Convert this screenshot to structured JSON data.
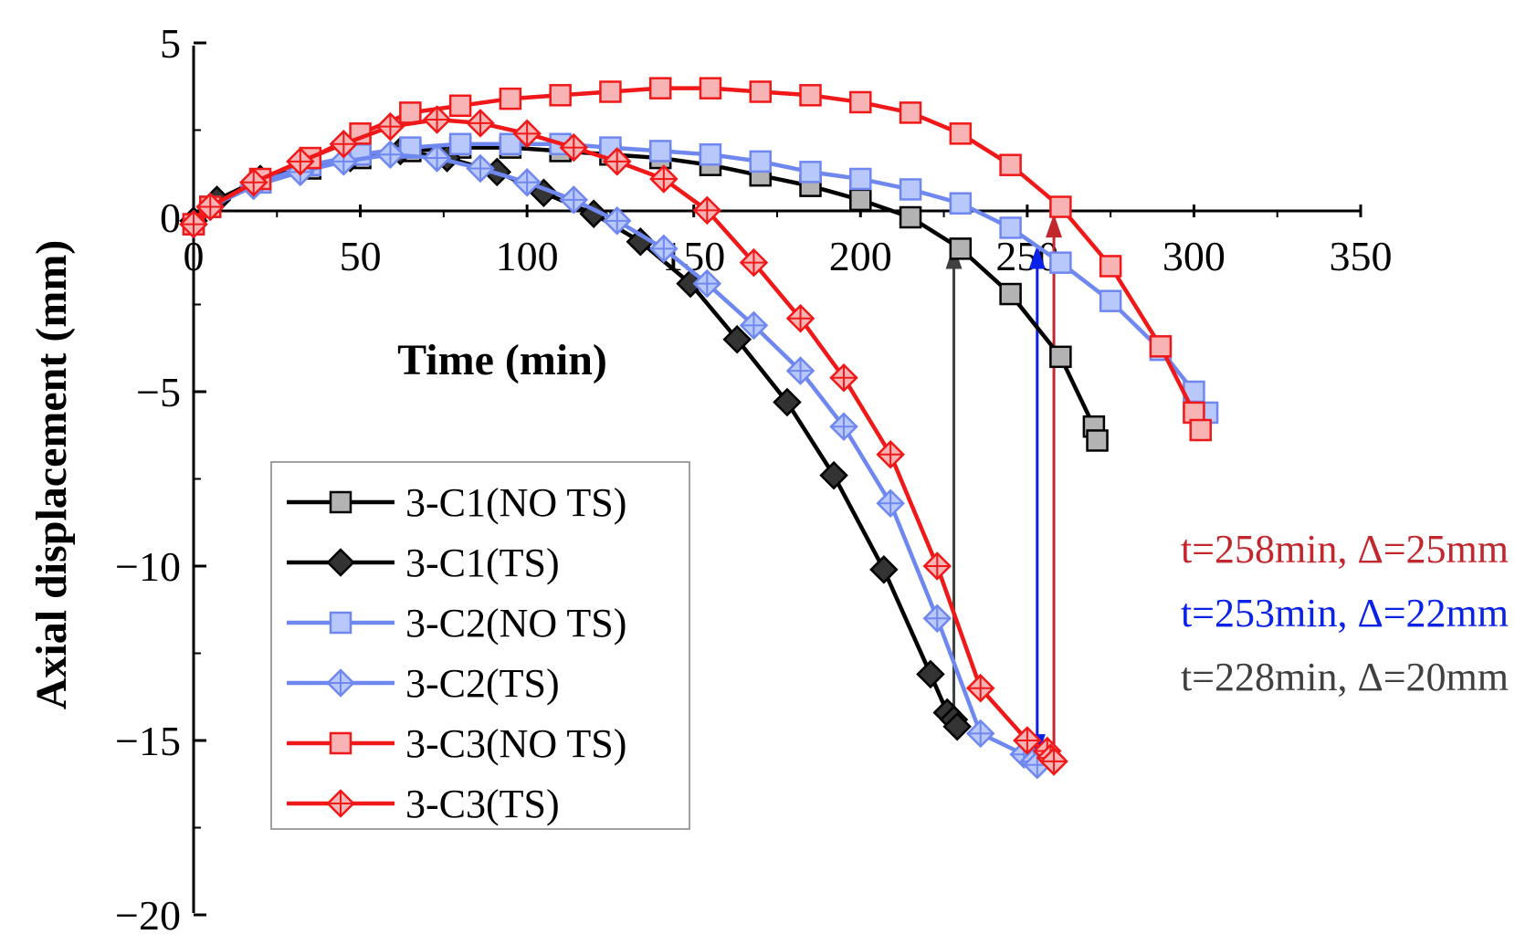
{
  "chart_data": {
    "type": "line",
    "title": "",
    "xlabel": "Time (min)",
    "ylabel": "Axial displacement (mm)",
    "xlim": [
      0,
      350
    ],
    "ylim": [
      -20,
      5
    ],
    "xticks": [
      0,
      50,
      100,
      150,
      200,
      250,
      300,
      350
    ],
    "yticks": [
      5,
      0,
      -5,
      -10,
      -15,
      -20
    ],
    "grid": false,
    "legend_position": "lower-left",
    "series": [
      {
        "name": "3-C1(NO TS)",
        "color": "#000000",
        "fill": "#b3b3b3",
        "marker": "square",
        "x": [
          0,
          5,
          20,
          35,
          50,
          65,
          80,
          95,
          110,
          125,
          140,
          155,
          170,
          185,
          200,
          215,
          230,
          245,
          260,
          270,
          271
        ],
        "y": [
          -0.2,
          0.3,
          1.0,
          1.4,
          1.7,
          1.9,
          2.0,
          2.0,
          1.9,
          1.8,
          1.7,
          1.5,
          1.2,
          0.9,
          0.5,
          0.0,
          -0.9,
          -2.2,
          -4.0,
          -6.0,
          -6.4
        ]
      },
      {
        "name": "3-C1(TS)",
        "color": "#000000",
        "fill": "#333333",
        "marker": "diamond",
        "x": [
          0,
          7,
          20,
          33,
          47,
          62,
          76,
          91,
          105,
          120,
          134,
          149,
          163,
          178,
          192,
          207,
          221,
          226,
          228,
          229
        ],
        "y": [
          -0.1,
          0.5,
          1.1,
          1.4,
          1.7,
          1.9,
          1.7,
          1.3,
          0.7,
          0.1,
          -0.7,
          -1.9,
          -3.5,
          -5.3,
          -7.4,
          -10.1,
          -13.1,
          -14.2,
          -14.4,
          -14.6
        ]
      },
      {
        "name": "3-C2(NO TS)",
        "color": "#6f88f0",
        "fill": "#b9c8fb",
        "marker": "square",
        "x": [
          0,
          5,
          20,
          35,
          50,
          65,
          80,
          95,
          110,
          125,
          140,
          155,
          170,
          185,
          200,
          215,
          230,
          245,
          260,
          275,
          290,
          300,
          304
        ],
        "y": [
          -0.2,
          0.3,
          1.0,
          1.5,
          1.8,
          2.0,
          2.1,
          2.1,
          2.1,
          2.0,
          1.9,
          1.8,
          1.6,
          1.3,
          1.1,
          0.8,
          0.4,
          -0.3,
          -1.3,
          -2.4,
          -3.8,
          -5.0,
          -5.6
        ]
      },
      {
        "name": "3-C2(TS)",
        "color": "#6f88f0",
        "fill": "#b9c8fb",
        "marker": "crossdiamond",
        "x": [
          0,
          5,
          18,
          32,
          45,
          59,
          73,
          86,
          100,
          114,
          127,
          141,
          154,
          168,
          182,
          195,
          209,
          223,
          236,
          249,
          252,
          253
        ],
        "y": [
          -0.2,
          0.3,
          0.9,
          1.3,
          1.6,
          1.8,
          1.7,
          1.4,
          1.0,
          0.5,
          -0.1,
          -0.9,
          -1.9,
          -3.1,
          -4.4,
          -6.0,
          -8.2,
          -11.5,
          -14.8,
          -15.4,
          -15.6,
          -15.7
        ]
      },
      {
        "name": "3-C3(NO TS)",
        "color": "#f01818",
        "fill": "#f8b4b4",
        "marker": "square",
        "x": [
          0,
          5,
          20,
          35,
          50,
          65,
          80,
          95,
          110,
          125,
          140,
          155,
          170,
          185,
          200,
          215,
          230,
          245,
          260,
          275,
          290,
          300,
          302
        ],
        "y": [
          -0.2,
          0.3,
          1.1,
          1.7,
          2.4,
          3.0,
          3.2,
          3.4,
          3.5,
          3.6,
          3.7,
          3.7,
          3.6,
          3.5,
          3.3,
          3.0,
          2.4,
          1.5,
          0.3,
          -1.4,
          -3.7,
          -5.6,
          -6.1
        ]
      },
      {
        "name": "3-C3(TS)",
        "color": "#f01818",
        "fill": "#f8b4b4",
        "marker": "crossdiamond",
        "x": [
          0,
          5,
          18,
          32,
          45,
          59,
          73,
          86,
          100,
          114,
          127,
          141,
          154,
          168,
          182,
          195,
          209,
          223,
          236,
          250,
          256,
          257,
          258
        ],
        "y": [
          -0.2,
          0.3,
          1.0,
          1.6,
          2.1,
          2.6,
          2.8,
          2.7,
          2.4,
          2.0,
          1.6,
          1.1,
          0.2,
          -1.3,
          -2.9,
          -4.6,
          -6.8,
          -10.0,
          -13.5,
          -15.0,
          -15.3,
          -15.5,
          -15.6
        ]
      }
    ],
    "annotations": [
      {
        "text": "t=258min, Δ=25mm",
        "color": "#c1272d",
        "arrow_x": 258,
        "arrow_y_from": -15.7,
        "arrow_y_to": 0.1
      },
      {
        "text": "t=253min, Δ=22mm",
        "color": "#0a21e8",
        "arrow_x": 253,
        "arrow_y_from": -15.5,
        "arrow_y_to": -0.8
      },
      {
        "text": "t=228min, Δ=20mm",
        "color": "#404040",
        "arrow_x": 228,
        "arrow_y_from": -14.4,
        "arrow_y_to": -0.8
      }
    ]
  }
}
